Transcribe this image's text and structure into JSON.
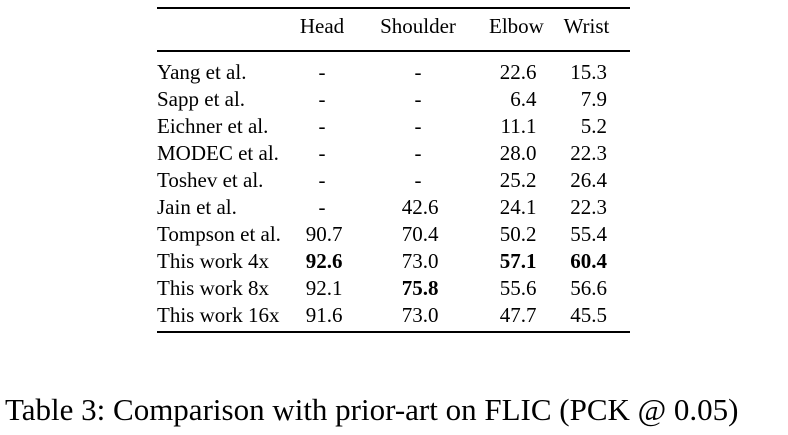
{
  "table": {
    "columns": [
      "",
      "Head",
      "Shoulder",
      "Elbow",
      "Wrist"
    ],
    "rows": [
      {
        "label": "Yang et al.",
        "values": [
          "-",
          "-",
          "22.6",
          "15.3"
        ]
      },
      {
        "label": "Sapp et al.",
        "values": [
          "-",
          "-",
          "6.4",
          "7.9"
        ]
      },
      {
        "label": "Eichner et al.",
        "values": [
          "-",
          "-",
          "11.1",
          "5.2"
        ]
      },
      {
        "label": "MODEC et al.",
        "values": [
          "-",
          "-",
          "28.0",
          "22.3"
        ]
      },
      {
        "label": "Toshev et al.",
        "values": [
          "-",
          "-",
          "25.2",
          "26.4"
        ]
      },
      {
        "label": "Jain et al.",
        "values": [
          "-",
          "42.6",
          "24.1",
          "22.3"
        ]
      },
      {
        "label": "Tompson et al.",
        "values": [
          "90.7",
          "70.4",
          "50.2",
          "55.4"
        ]
      },
      {
        "label": "This work 4x",
        "values": [
          "92.6",
          "73.0",
          "57.1",
          "60.4"
        ],
        "bold": [
          true,
          false,
          true,
          true
        ]
      },
      {
        "label": "This work 8x",
        "values": [
          "92.1",
          "75.8",
          "55.6",
          "56.6"
        ],
        "bold": [
          false,
          true,
          false,
          false
        ]
      },
      {
        "label": "This work 16x",
        "values": [
          "91.6",
          "73.0",
          "47.7",
          "45.5"
        ]
      }
    ]
  },
  "caption": "Table 3: Comparison with prior-art on FLIC (PCK @ 0.05)"
}
